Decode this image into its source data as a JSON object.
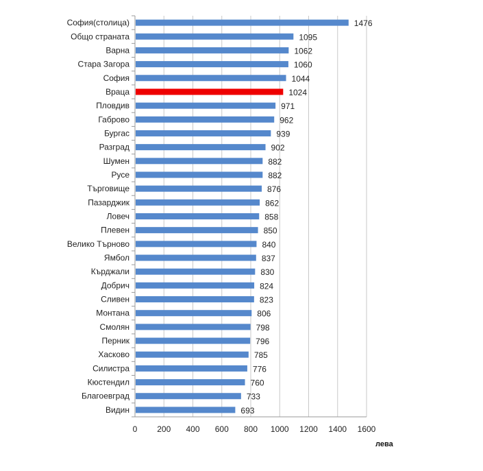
{
  "chart_data": {
    "type": "bar",
    "orientation": "horizontal",
    "title": "",
    "xlabel": "лева",
    "ylabel": "",
    "xlim": [
      0,
      1600
    ],
    "xticks": [
      "0",
      "200",
      "400",
      "600",
      "800",
      "1000",
      "1200",
      "1400",
      "1600"
    ],
    "grid": true,
    "legend": "none",
    "bar_color": "#5588cc",
    "highlight_color": "#ee0000",
    "highlight_category": "Враца",
    "categories": [
      "София(столица)",
      "Общо страната",
      "Варна",
      "Стара Загора",
      "София",
      "Враца",
      "Пловдив",
      "Габрово",
      "Бургас",
      "Разград",
      "Шумен",
      "Русе",
      "Търговище",
      "Пазарджик",
      "Ловеч",
      "Плевен",
      "Велико Търново",
      "Ямбол",
      "Кърджали",
      "Добрич",
      "Сливен",
      "Монтана",
      "Смолян",
      "Перник",
      "Хасково",
      "Силистра",
      "Кюстендил",
      "Благоевград",
      "Видин"
    ],
    "values": [
      1476,
      1095,
      1062,
      1060,
      1044,
      1024,
      971,
      962,
      939,
      902,
      882,
      882,
      876,
      862,
      858,
      850,
      840,
      837,
      830,
      824,
      823,
      806,
      798,
      796,
      785,
      776,
      760,
      733,
      693
    ]
  }
}
